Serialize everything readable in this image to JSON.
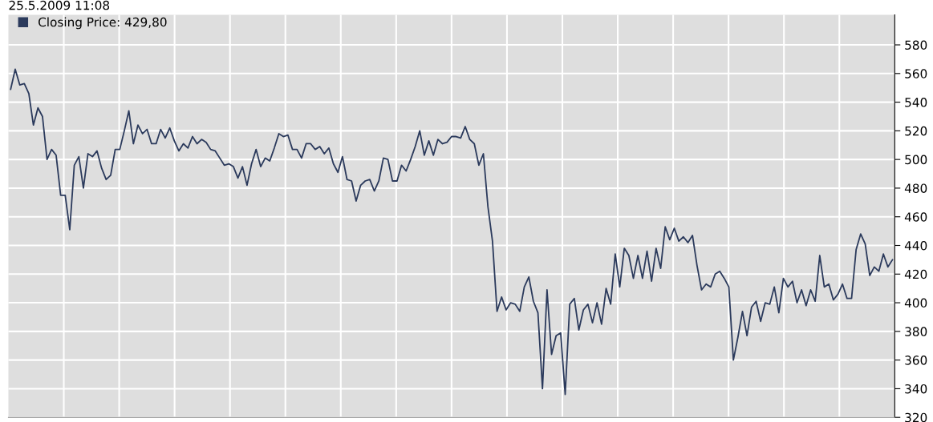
{
  "chart_data": {
    "type": "line",
    "title": "25.5.2009 11:08",
    "categories": [
      null,
      null,
      null,
      null,
      null,
      null,
      null,
      null,
      null,
      null,
      null,
      null,
      null,
      null,
      null,
      null,
      null,
      null,
      null,
      null,
      null,
      null,
      null,
      null,
      null,
      null,
      null,
      null,
      null,
      null,
      null,
      null,
      null,
      null,
      null,
      null,
      null,
      null,
      null,
      null,
      null,
      null,
      null,
      null,
      null,
      null,
      null,
      null,
      null,
      null,
      null,
      null,
      null,
      null,
      null,
      null,
      null,
      null,
      null,
      null,
      null,
      null,
      null,
      null,
      null,
      null,
      null,
      null,
      null,
      null,
      null,
      null,
      null,
      null,
      null,
      null,
      null,
      null,
      null,
      null,
      null,
      null,
      null,
      null,
      null,
      null,
      null,
      null,
      null,
      null,
      null,
      null,
      null,
      null,
      null,
      null,
      null,
      null,
      null,
      null,
      null,
      null,
      null,
      null,
      null,
      null,
      null,
      null,
      null,
      null,
      null,
      null,
      null,
      null,
      null,
      null,
      null,
      null,
      null,
      null,
      null,
      null,
      null,
      null,
      null,
      null,
      null,
      null,
      null,
      null,
      null,
      null,
      null,
      null,
      null,
      null,
      null,
      null,
      null,
      null,
      null,
      null,
      null,
      null,
      null,
      null,
      null,
      null,
      null,
      null,
      null,
      null,
      null,
      null,
      null,
      null,
      null,
      null,
      null,
      null,
      null,
      null,
      null,
      null,
      null,
      null,
      null,
      null,
      null,
      null,
      null,
      null,
      null,
      null,
      null,
      null,
      null,
      null,
      null,
      null,
      null,
      null,
      null,
      null,
      null,
      null,
      null,
      null,
      null,
      null,
      null,
      null,
      null,
      null,
      null
    ],
    "series": [
      {
        "name": "Closing Price: 429,80",
        "color": "#2b3a5c",
        "values": [
          549,
          563,
          552,
          553,
          546,
          524,
          536,
          530,
          500,
          507,
          503,
          475,
          475,
          451,
          496,
          502,
          480,
          504,
          502,
          506,
          494,
          486,
          489,
          507,
          507,
          520,
          534,
          511,
          524,
          518,
          521,
          511,
          511,
          521,
          515,
          522,
          513,
          506,
          511,
          508,
          516,
          511,
          514,
          512,
          507,
          506,
          501,
          496,
          497,
          495,
          487,
          495,
          482,
          497,
          507,
          495,
          501,
          499,
          508,
          518,
          516,
          517,
          507,
          507,
          501,
          511,
          511,
          507,
          509,
          504,
          508,
          497,
          491,
          502,
          486,
          485,
          471,
          482,
          485,
          486,
          478,
          485,
          501,
          500,
          485,
          485,
          496,
          492,
          500,
          509,
          520,
          503,
          513,
          503,
          514,
          511,
          512,
          516,
          516,
          515,
          523,
          514,
          511,
          496,
          504,
          467,
          443,
          394,
          404,
          395,
          400,
          399,
          394,
          411,
          418,
          401,
          393,
          340,
          409,
          364,
          377,
          379,
          336,
          399,
          403,
          381,
          395,
          399,
          386,
          400,
          385,
          410,
          399,
          434,
          411,
          438,
          433,
          417,
          433,
          417,
          436,
          415,
          438,
          424,
          453,
          444,
          452,
          443,
          446,
          442,
          447,
          426,
          409,
          413,
          411,
          420,
          422,
          417,
          411,
          360,
          376,
          394,
          377,
          397,
          401,
          387,
          400,
          399,
          411,
          393,
          417,
          411,
          415,
          400,
          409,
          398,
          409,
          401,
          433,
          411,
          413,
          402,
          406,
          413,
          403,
          403,
          437,
          448,
          441,
          419,
          425,
          422,
          434,
          425,
          430
        ]
      }
    ],
    "ylim": [
      320,
      601
    ],
    "yticks": [
      320,
      340,
      360,
      380,
      400,
      420,
      440,
      460,
      480,
      500,
      520,
      540,
      560,
      580
    ],
    "grid": true,
    "legend": "top left",
    "tick_labels": "y"
  }
}
